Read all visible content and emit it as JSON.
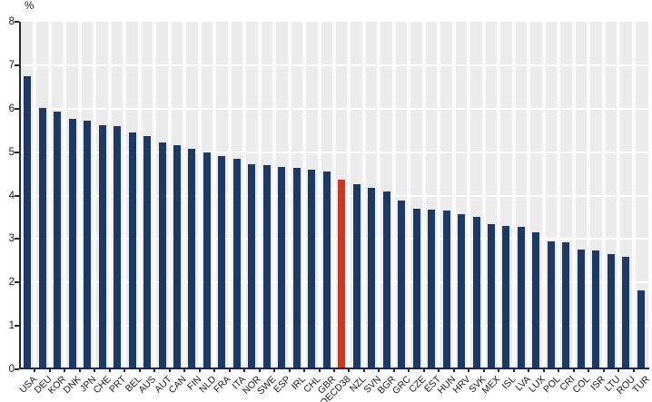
{
  "chart_data": {
    "type": "bar",
    "title": "",
    "unit": "%",
    "xlabel": "",
    "ylabel": "%",
    "ylim": [
      0,
      8
    ],
    "yticks": [
      0,
      1,
      2,
      3,
      4,
      5,
      6,
      7,
      8
    ],
    "grid": "horizontal white gridlines on light-gray plot background, white vertical stripes between bars",
    "legend": "none",
    "highlight_category": "OECD38",
    "categories": [
      "USA",
      "DEU",
      "KOR",
      "DNK",
      "JPN",
      "CHE",
      "PRT",
      "BEL",
      "AUS",
      "AUT",
      "CAN",
      "FIN",
      "NLD",
      "FRA",
      "ITA",
      "NOR",
      "SWE",
      "ESP",
      "IRL",
      "CHL",
      "GBR",
      "OECD38",
      "NZL",
      "SVN",
      "BGR",
      "GRC",
      "CZE",
      "EST",
      "HUN",
      "HRV",
      "SVK",
      "MEX",
      "ISL",
      "LVA",
      "LUX",
      "POL",
      "CRI",
      "COL",
      "ISR",
      "LTU",
      "ROU",
      "TUR"
    ],
    "values": [
      6.75,
      6.02,
      5.94,
      5.76,
      5.73,
      5.62,
      5.6,
      5.46,
      5.36,
      5.23,
      5.16,
      5.08,
      5.0,
      4.9,
      4.85,
      4.72,
      4.69,
      4.66,
      4.63,
      4.6,
      4.55,
      4.37,
      4.26,
      4.18,
      4.1,
      3.88,
      3.7,
      3.67,
      3.65,
      3.57,
      3.5,
      3.34,
      3.3,
      3.27,
      3.15,
      2.95,
      2.93,
      2.76,
      2.73,
      2.66,
      2.58,
      1.82
    ],
    "colors": {
      "bar": "#1d3a66",
      "highlight": "#cb3a1e",
      "plot_background": "#ebebeb",
      "gridline": "#ffffff",
      "axis": "#17294d",
      "text": "#1a1a1a"
    }
  }
}
